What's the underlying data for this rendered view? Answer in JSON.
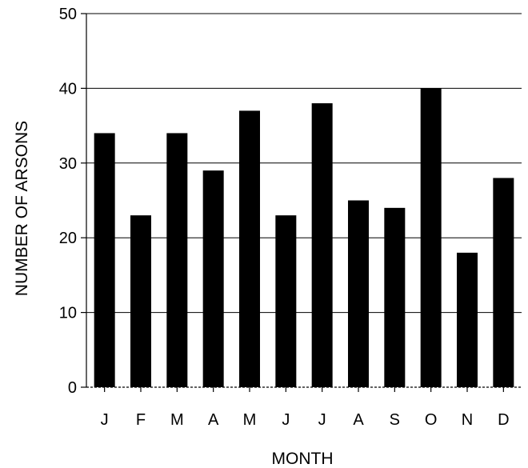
{
  "chart_data": {
    "type": "bar",
    "title": "",
    "xlabel": "MONTH",
    "ylabel": "NUMBER OF ARSONS",
    "categories": [
      "J",
      "F",
      "M",
      "A",
      "M",
      "J",
      "J",
      "A",
      "S",
      "O",
      "N",
      "D"
    ],
    "values": [
      34,
      23,
      34,
      29,
      37,
      23,
      38,
      25,
      24,
      40,
      18,
      28
    ],
    "ylim": [
      0,
      50
    ],
    "yticks": [
      0,
      10,
      20,
      30,
      40,
      50
    ],
    "grid": "horizontal",
    "legend": "none",
    "bar_color": "#000000",
    "grid_color": "#000000"
  }
}
